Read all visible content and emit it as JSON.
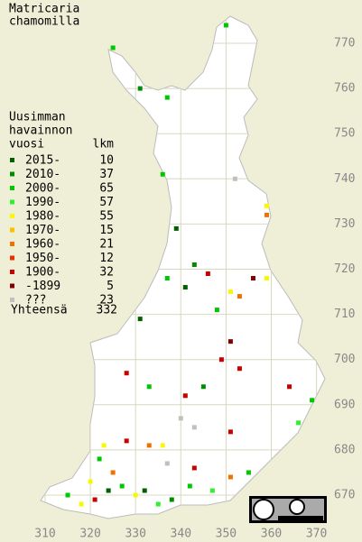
{
  "title": [
    "Matricaria",
    "chamomilla"
  ],
  "legend": {
    "heading": [
      "Uusimman",
      "havainnon",
      "vuosi"
    ],
    "count_heading": "lkm",
    "classes": [
      {
        "label": "2015-",
        "count": 10,
        "color": "#006000"
      },
      {
        "label": "2010-",
        "count": 37,
        "color": "#008c00"
      },
      {
        "label": "2000-",
        "count": 65,
        "color": "#00c800"
      },
      {
        "label": "1990-",
        "count": 57,
        "color": "#30f030"
      },
      {
        "label": "1980-",
        "count": 55,
        "color": "#f8f800"
      },
      {
        "label": "1970-",
        "count": 15,
        "color": "#f8c000"
      },
      {
        "label": "1960-",
        "count": 21,
        "color": "#f07000"
      },
      {
        "label": "1950-",
        "count": 12,
        "color": "#e83000"
      },
      {
        "label": "1900-",
        "count": 32,
        "color": "#c80000"
      },
      {
        "label": "-1899",
        "count": 5,
        "color": "#800000"
      },
      {
        "label": "???",
        "count": 23,
        "color": "#c0c0c0"
      }
    ],
    "total_label": "Yhteensä",
    "total": 332
  },
  "xticks": [
    310,
    320,
    330,
    340,
    350,
    360,
    370
  ],
  "yticks": [
    670,
    680,
    690,
    700,
    710,
    720,
    730,
    740,
    750,
    760,
    770
  ],
  "points": [
    {
      "x": 325,
      "y": 769,
      "c": 2
    },
    {
      "x": 350,
      "y": 774,
      "c": 2
    },
    {
      "x": 337,
      "y": 758,
      "c": 2
    },
    {
      "x": 331,
      "y": 760,
      "c": 1
    },
    {
      "x": 336,
      "y": 741,
      "c": 2
    },
    {
      "x": 339,
      "y": 729,
      "c": 0
    },
    {
      "x": 359,
      "y": 734,
      "c": 4
    },
    {
      "x": 359,
      "y": 732,
      "c": 6
    },
    {
      "x": 352,
      "y": 740,
      "c": 10
    },
    {
      "x": 343,
      "y": 721,
      "c": 1
    },
    {
      "x": 346,
      "y": 719,
      "c": 8
    },
    {
      "x": 337,
      "y": 718,
      "c": 2
    },
    {
      "x": 341,
      "y": 716,
      "c": 0
    },
    {
      "x": 351,
      "y": 715,
      "c": 4
    },
    {
      "x": 353,
      "y": 714,
      "c": 6
    },
    {
      "x": 359,
      "y": 718,
      "c": 4
    },
    {
      "x": 356,
      "y": 718,
      "c": 9
    },
    {
      "x": 348,
      "y": 711,
      "c": 2
    },
    {
      "x": 331,
      "y": 709,
      "c": 0
    },
    {
      "x": 351,
      "y": 704,
      "c": 9
    },
    {
      "x": 349,
      "y": 700,
      "c": 8
    },
    {
      "x": 353,
      "y": 698,
      "c": 8
    },
    {
      "x": 369,
      "y": 691,
      "c": 2
    },
    {
      "x": 366,
      "y": 686,
      "c": 3
    },
    {
      "x": 328,
      "y": 697,
      "c": 8
    },
    {
      "x": 333,
      "y": 694,
      "c": 2
    },
    {
      "x": 341,
      "y": 692,
      "c": 8
    },
    {
      "x": 345,
      "y": 694,
      "c": 1
    },
    {
      "x": 343,
      "y": 685,
      "c": 10
    },
    {
      "x": 351,
      "y": 684,
      "c": 8
    },
    {
      "x": 336,
      "y": 681,
      "c": 4
    },
    {
      "x": 333,
      "y": 681,
      "c": 6
    },
    {
      "x": 323,
      "y": 681,
      "c": 4
    },
    {
      "x": 328,
      "y": 682,
      "c": 8
    },
    {
      "x": 322,
      "y": 678,
      "c": 2
    },
    {
      "x": 325,
      "y": 675,
      "c": 6
    },
    {
      "x": 320,
      "y": 673,
      "c": 4
    },
    {
      "x": 324,
      "y": 671,
      "c": 0
    },
    {
      "x": 327,
      "y": 672,
      "c": 2
    },
    {
      "x": 330,
      "y": 670,
      "c": 4
    },
    {
      "x": 332,
      "y": 671,
      "c": 0
    },
    {
      "x": 335,
      "y": 668,
      "c": 3
    },
    {
      "x": 338,
      "y": 669,
      "c": 1
    },
    {
      "x": 342,
      "y": 672,
      "c": 2
    },
    {
      "x": 347,
      "y": 671,
      "c": 3
    },
    {
      "x": 351,
      "y": 674,
      "c": 6
    },
    {
      "x": 355,
      "y": 675,
      "c": 2
    },
    {
      "x": 315,
      "y": 670,
      "c": 2
    },
    {
      "x": 318,
      "y": 668,
      "c": 4
    },
    {
      "x": 321,
      "y": 669,
      "c": 8
    },
    {
      "x": 343,
      "y": 676,
      "c": 8
    },
    {
      "x": 337,
      "y": 677,
      "c": 10
    },
    {
      "x": 340,
      "y": 687,
      "c": 10
    },
    {
      "x": 364,
      "y": 694,
      "c": 8
    }
  ]
}
